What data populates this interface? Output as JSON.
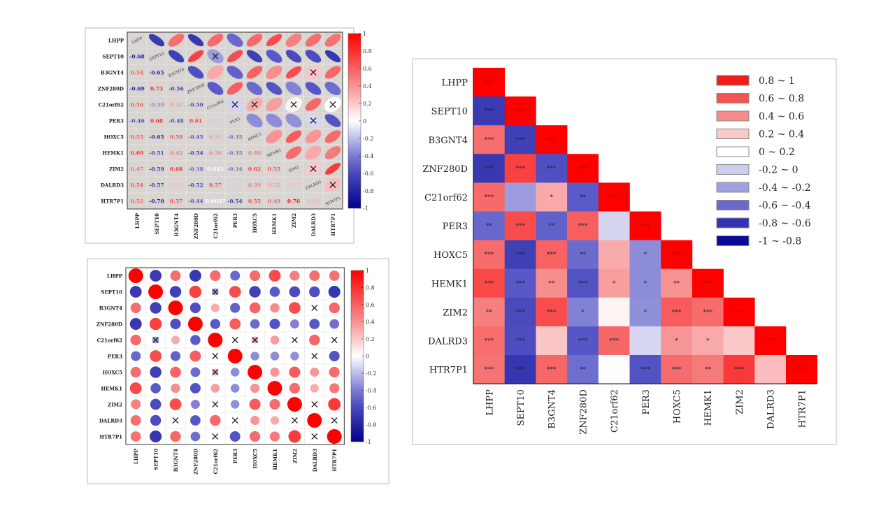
{
  "chart_data": [
    {
      "type": "heatmap",
      "style": "ellipse-upper-numbers-lower",
      "genes": [
        "LHPP",
        "SEPT10",
        "B3GNT4",
        "ZNF280D",
        "C21orf62",
        "PER3",
        "HOXC5",
        "HEMK1",
        "ZIM2",
        "DALRD3",
        "HTR7P1"
      ],
      "colorbar_ticks": [
        "1",
        "0.8",
        "0.6",
        "0.4",
        "0.2",
        "0",
        "-0.2",
        "-0.4",
        "-0.6",
        "-0.8",
        "-1"
      ],
      "value_labels": [
        [],
        [
          "-0.68"
        ],
        [
          "0.54",
          "-0.65"
        ],
        [
          "-0.69",
          "0.73",
          "-0.56"
        ],
        [
          "0.56",
          "-0.30",
          "0.32",
          "-0.50"
        ],
        [
          "-0.46",
          "0.68",
          "-0.48",
          "0.61",
          "-0.13"
        ],
        [
          "0.55",
          "-0.65",
          "0.59",
          "-0.45",
          "0.31",
          "-0.35"
        ],
        [
          "0.69",
          "-0.51",
          "0.42",
          "-0.54",
          "0.36",
          "-0.35",
          "0.40"
        ],
        [
          "0.47",
          "-0.59",
          "0.68",
          "-0.38",
          "0.043",
          "-0.34",
          "0.62",
          "0.55"
        ],
        [
          "0.54",
          "-0.57",
          "0.21",
          "-0.52",
          "0.57",
          "-0.12",
          "0.39",
          "0.32",
          "0.20"
        ],
        [
          "0.52",
          "-0.70",
          "0.57",
          "-0.44",
          "0.0037",
          "-0.54",
          "0.55",
          "0.49",
          "0.76",
          "0.25"
        ]
      ],
      "background": "#d8d5d2",
      "grid": true
    },
    {
      "type": "heatmap",
      "style": "circle-full",
      "colorbar_ticks": [
        "1",
        "0.8",
        "0.6",
        "0.4",
        "0.2",
        "0",
        "-0.2",
        "-0.4",
        "-0.6",
        "-0.8",
        "-1"
      ],
      "grid": true
    },
    {
      "type": "heatmap",
      "style": "lower-triangle-binned",
      "legend": [
        {
          "label": "0.8  ~ 1",
          "color": "#f01c1c"
        },
        {
          "label": "0.6  ~ 0.8",
          "color": "#f25454"
        },
        {
          "label": "0.4  ~ 0.6",
          "color": "#f58c8c"
        },
        {
          "label": "0.2  ~ 0.4",
          "color": "#f9caca"
        },
        {
          "label": "0     ~ 0.2",
          "color": "#ffffff"
        },
        {
          "label": "-0.2 ~ 0",
          "color": "#cccdf0"
        },
        {
          "label": "-0.4 ~ -0.2",
          "color": "#a0a0de"
        },
        {
          "label": "-0.6 ~ -0.4",
          "color": "#6a6acb"
        },
        {
          "label": "-0.8 ~ -0.6",
          "color": "#3333b3"
        },
        {
          "label": "-1    ~ -0.8",
          "color": "#0a0a96"
        }
      ],
      "legend_position": "top-right",
      "significance": [
        [
          "***"
        ],
        [
          "***",
          "***"
        ],
        [
          "***",
          "***",
          "***"
        ],
        [
          "***",
          "***",
          "***",
          "***"
        ],
        [
          "***",
          "",
          "*",
          "**",
          "***"
        ],
        [
          "**",
          "***",
          "**",
          "***",
          "",
          "***"
        ],
        [
          "***",
          "***",
          "***",
          "**",
          "",
          "*",
          "***"
        ],
        [
          "***",
          "***",
          "**",
          "***",
          "*",
          "*",
          "**",
          "***"
        ],
        [
          "**",
          "***",
          "***",
          "*",
          "",
          "*",
          "***",
          "***",
          "***"
        ],
        [
          "***",
          "***",
          "",
          "***",
          "***",
          "",
          "*",
          "*",
          "",
          "***"
        ],
        [
          "***",
          "***",
          "***",
          "**",
          "",
          "***",
          "***",
          "**",
          "***",
          "",
          "***"
        ]
      ]
    }
  ],
  "colors": {
    "positive": "#ff0000",
    "negative": "#00008b",
    "zero": "#ffffff"
  }
}
